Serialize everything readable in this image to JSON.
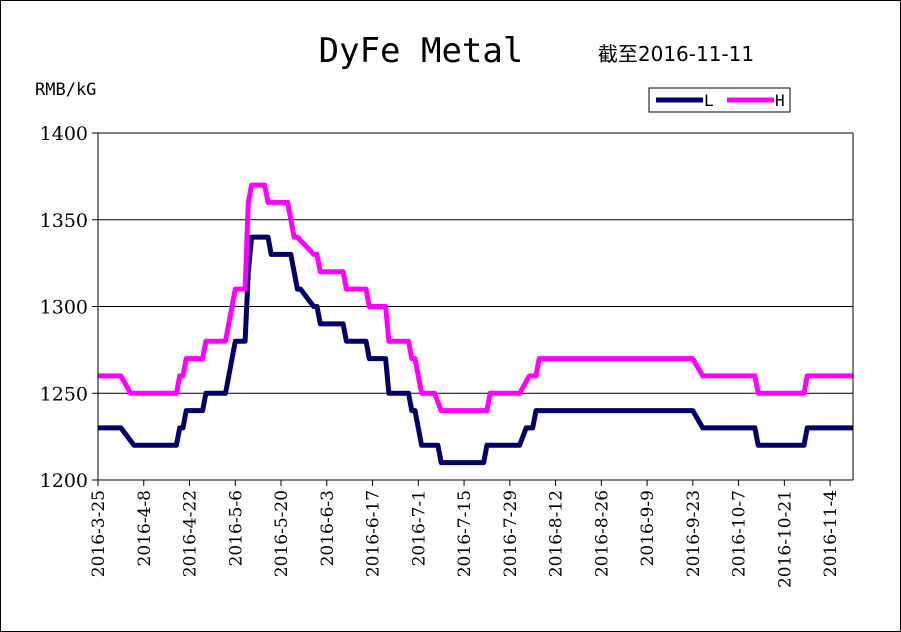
{
  "chart_data": {
    "type": "line",
    "title": "DyFe Metal",
    "subtitle": "截至2016-11-11",
    "ylabel": "RMB/kG",
    "xlabel": "",
    "ylim": [
      1200,
      1400
    ],
    "yticks": [
      "1400",
      "1350",
      "1300",
      "1250",
      "1200"
    ],
    "ytick_values": [
      1400,
      1350,
      1300,
      1250,
      1200
    ],
    "grid": true,
    "legend_position": "top-right",
    "xlim": [
      "2016-03-25",
      "2016-11-11"
    ],
    "xtick_labels": [
      "2016-3-25",
      "2016-4-8",
      "2016-4-22",
      "2016-5-6",
      "2016-5-20",
      "2016-6-3",
      "2016-6-17",
      "2016-7-1",
      "2016-7-15",
      "2016-7-29",
      "2016-8-12",
      "2016-8-26",
      "2016-9-9",
      "2016-9-23",
      "2016-10-7",
      "2016-10-21",
      "2016-11-4"
    ],
    "xtick_dates": [
      "2016-03-25",
      "2016-04-08",
      "2016-04-22",
      "2016-05-06",
      "2016-05-20",
      "2016-06-03",
      "2016-06-17",
      "2016-07-01",
      "2016-07-15",
      "2016-07-29",
      "2016-08-12",
      "2016-08-26",
      "2016-09-09",
      "2016-09-23",
      "2016-10-07",
      "2016-10-21",
      "2016-11-04"
    ],
    "series": [
      {
        "name": "L",
        "color": "#000066",
        "points": [
          [
            "2016-03-25",
            1230
          ],
          [
            "2016-04-01",
            1230
          ],
          [
            "2016-04-05",
            1220
          ],
          [
            "2016-04-18",
            1220
          ],
          [
            "2016-04-19",
            1230
          ],
          [
            "2016-04-20",
            1230
          ],
          [
            "2016-04-21",
            1240
          ],
          [
            "2016-04-26",
            1240
          ],
          [
            "2016-04-27",
            1250
          ],
          [
            "2016-05-03",
            1250
          ],
          [
            "2016-05-06",
            1280
          ],
          [
            "2016-05-09",
            1280
          ],
          [
            "2016-05-10",
            1320
          ],
          [
            "2016-05-11",
            1340
          ],
          [
            "2016-05-16",
            1340
          ],
          [
            "2016-05-17",
            1330
          ],
          [
            "2016-05-23",
            1330
          ],
          [
            "2016-05-25",
            1310
          ],
          [
            "2016-05-26",
            1310
          ],
          [
            "2016-05-30",
            1300
          ],
          [
            "2016-05-31",
            1300
          ],
          [
            "2016-06-01",
            1290
          ],
          [
            "2016-06-08",
            1290
          ],
          [
            "2016-06-09",
            1280
          ],
          [
            "2016-06-15",
            1280
          ],
          [
            "2016-06-16",
            1270
          ],
          [
            "2016-06-21",
            1270
          ],
          [
            "2016-06-22",
            1250
          ],
          [
            "2016-06-28",
            1250
          ],
          [
            "2016-06-29",
            1240
          ],
          [
            "2016-06-30",
            1240
          ],
          [
            "2016-07-02",
            1220
          ],
          [
            "2016-07-07",
            1220
          ],
          [
            "2016-07-08",
            1210
          ],
          [
            "2016-07-21",
            1210
          ],
          [
            "2016-07-22",
            1220
          ],
          [
            "2016-08-01",
            1220
          ],
          [
            "2016-08-03",
            1230
          ],
          [
            "2016-08-05",
            1230
          ],
          [
            "2016-08-06",
            1240
          ],
          [
            "2016-09-23",
            1240
          ],
          [
            "2016-09-26",
            1230
          ],
          [
            "2016-10-12",
            1230
          ],
          [
            "2016-10-13",
            1220
          ],
          [
            "2016-10-27",
            1220
          ],
          [
            "2016-10-28",
            1230
          ],
          [
            "2016-11-11",
            1230
          ]
        ]
      },
      {
        "name": "H",
        "color": "#ff00ff",
        "points": [
          [
            "2016-03-25",
            1260
          ],
          [
            "2016-04-01",
            1260
          ],
          [
            "2016-04-04",
            1250
          ],
          [
            "2016-04-18",
            1250
          ],
          [
            "2016-04-19",
            1260
          ],
          [
            "2016-04-20",
            1260
          ],
          [
            "2016-04-21",
            1270
          ],
          [
            "2016-04-26",
            1270
          ],
          [
            "2016-04-27",
            1280
          ],
          [
            "2016-05-03",
            1280
          ],
          [
            "2016-05-06",
            1310
          ],
          [
            "2016-05-09",
            1310
          ],
          [
            "2016-05-10",
            1360
          ],
          [
            "2016-05-11",
            1370
          ],
          [
            "2016-05-15",
            1370
          ],
          [
            "2016-05-16",
            1360
          ],
          [
            "2016-05-22",
            1360
          ],
          [
            "2016-05-24",
            1340
          ],
          [
            "2016-05-25",
            1340
          ],
          [
            "2016-05-30",
            1330
          ],
          [
            "2016-05-31",
            1330
          ],
          [
            "2016-06-01",
            1320
          ],
          [
            "2016-06-08",
            1320
          ],
          [
            "2016-06-09",
            1310
          ],
          [
            "2016-06-15",
            1310
          ],
          [
            "2016-06-16",
            1300
          ],
          [
            "2016-06-21",
            1300
          ],
          [
            "2016-06-22",
            1280
          ],
          [
            "2016-06-28",
            1280
          ],
          [
            "2016-06-29",
            1270
          ],
          [
            "2016-06-30",
            1270
          ],
          [
            "2016-07-02",
            1250
          ],
          [
            "2016-07-06",
            1250
          ],
          [
            "2016-07-08",
            1240
          ],
          [
            "2016-07-22",
            1240
          ],
          [
            "2016-07-23",
            1250
          ],
          [
            "2016-08-01",
            1250
          ],
          [
            "2016-08-04",
            1260
          ],
          [
            "2016-08-06",
            1260
          ],
          [
            "2016-08-07",
            1270
          ],
          [
            "2016-09-23",
            1270
          ],
          [
            "2016-09-26",
            1260
          ],
          [
            "2016-10-12",
            1260
          ],
          [
            "2016-10-13",
            1250
          ],
          [
            "2016-10-27",
            1250
          ],
          [
            "2016-10-28",
            1260
          ],
          [
            "2016-11-11",
            1260
          ]
        ]
      }
    ]
  }
}
